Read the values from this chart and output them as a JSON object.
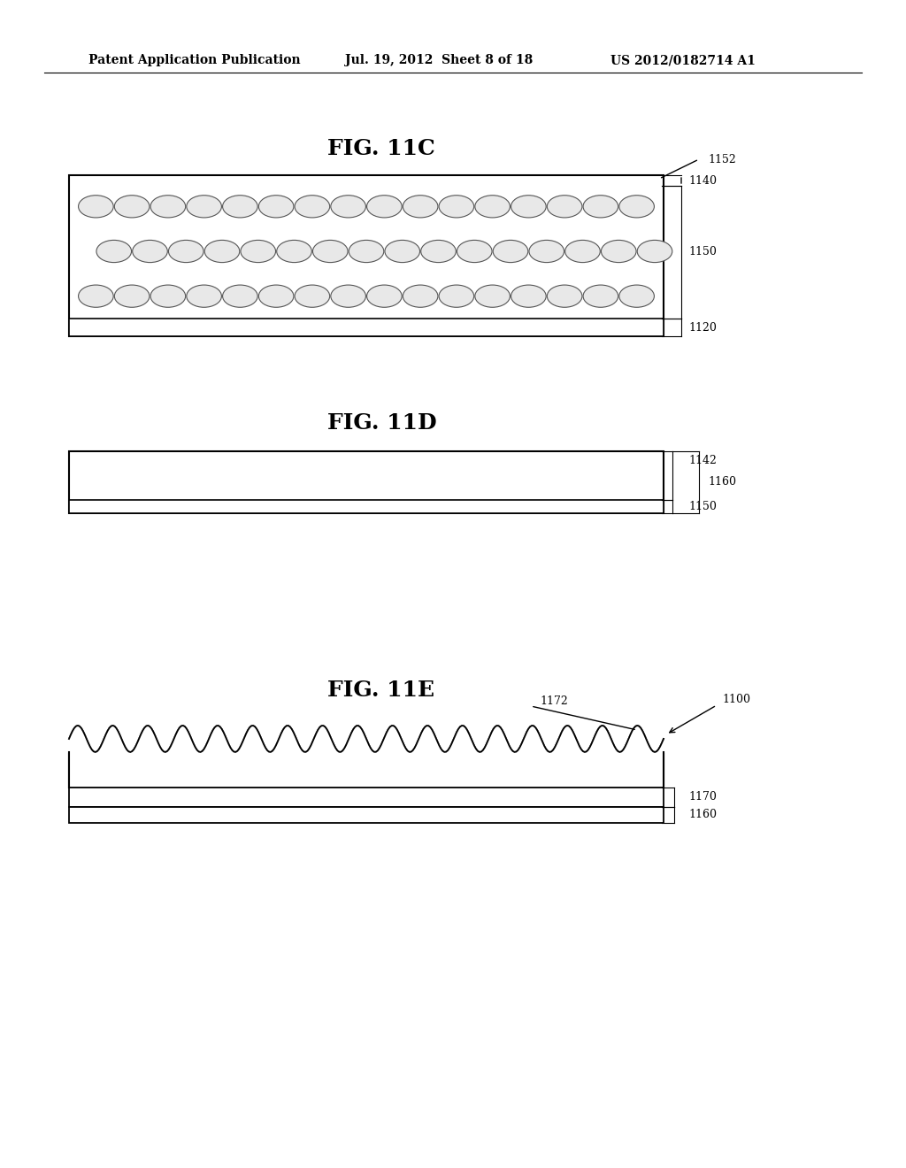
{
  "bg_color": "#ffffff",
  "header_left": "Patent Application Publication",
  "header_mid": "Jul. 19, 2012  Sheet 8 of 18",
  "header_right": "US 2012/0182714 A1",
  "fig11c_title": "FIG. 11C",
  "fig11d_title": "FIG. 11D",
  "fig11e_title": "FIG. 11E",
  "label_1152": "1152",
  "label_1140": "1140",
  "label_1150_c": "1150",
  "label_1120": "1120",
  "label_1142": "1142",
  "label_1150_d": "1150",
  "label_1160_d": "1160",
  "label_1172": "1172",
  "label_1170": "1170",
  "label_1160_e": "1160",
  "label_1100": "1100"
}
